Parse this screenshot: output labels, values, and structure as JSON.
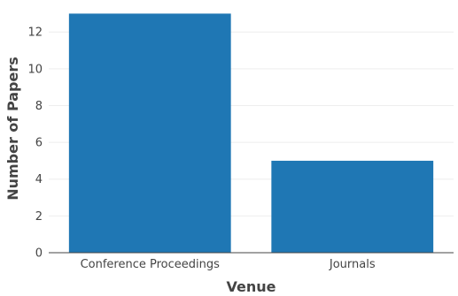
{
  "chart_data": {
    "type": "bar",
    "title": "",
    "xlabel": "Venue",
    "ylabel": "Number of Papers",
    "categories": [
      "Conference Proceedings",
      "Journals"
    ],
    "values": [
      13,
      5
    ],
    "ylim": [
      0,
      13.5
    ],
    "yticks": [
      0,
      2,
      4,
      6,
      8,
      10,
      12
    ],
    "grid": true,
    "legend": "none",
    "colors": {
      "bar": "#1f77b4",
      "grid": "#eeeeee",
      "text": "#444444"
    }
  }
}
